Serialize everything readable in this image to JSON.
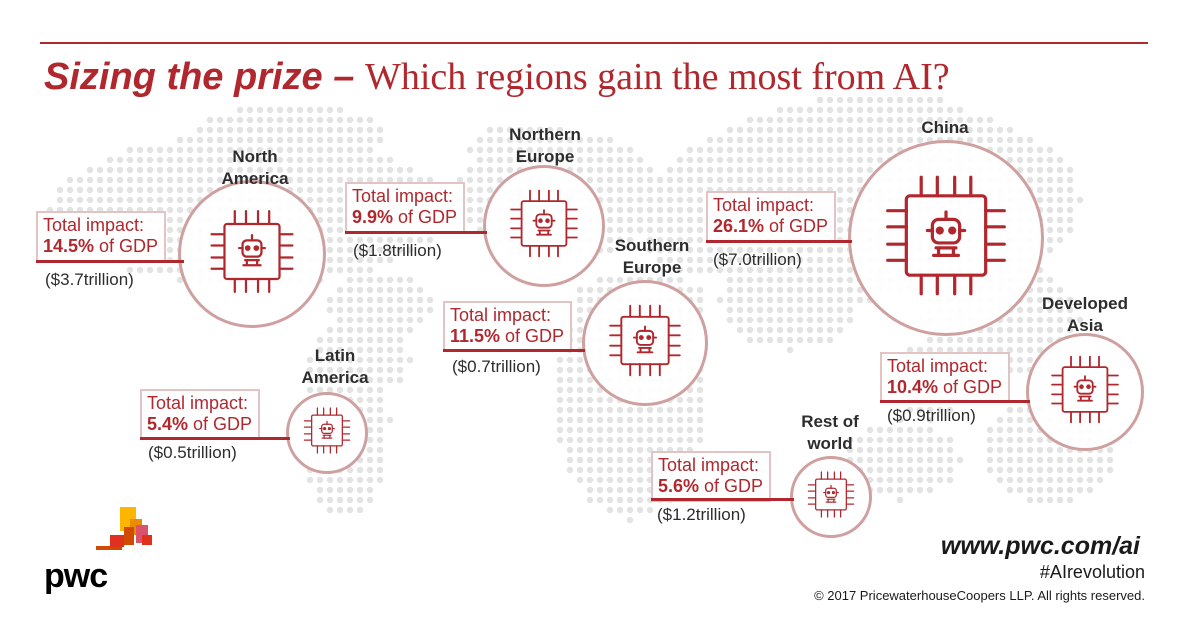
{
  "title": {
    "emphasis": "Sizing the prize –",
    "rest": "Which regions gain the most from AI?"
  },
  "common": {
    "total_impact_label": "Total impact:",
    "of_gdp": " of GDP"
  },
  "regions": [
    {
      "name_line1": "North",
      "name_line2": "America",
      "impact_pct": "14.5%",
      "amount": "($3.7trillion)"
    },
    {
      "name_line1": "Northern",
      "name_line2": "Europe",
      "impact_pct": "9.9%",
      "amount": "($1.8trillion)"
    },
    {
      "name_line1": "China",
      "name_line2": "",
      "impact_pct": "26.1%",
      "amount": "($7.0trillion)"
    },
    {
      "name_line1": "Southern",
      "name_line2": "Europe",
      "impact_pct": "11.5%",
      "amount": "($0.7trillion)"
    },
    {
      "name_line1": "Developed",
      "name_line2": "Asia",
      "impact_pct": "10.4%",
      "amount": "($0.9trillion)"
    },
    {
      "name_line1": "Latin",
      "name_line2": "America",
      "impact_pct": "5.4%",
      "amount": "($0.5trillion)"
    },
    {
      "name_line1": "Rest of",
      "name_line2": "world",
      "impact_pct": "5.6%",
      "amount": "($1.2trillion)"
    }
  ],
  "footer": {
    "url": "www.pwc.com/ai",
    "hashtag": "#AIrevolution",
    "copyright": "© 2017 PricewaterhouseCoopers LLP. All rights reserved.",
    "logo_text": "pwc"
  },
  "colors": {
    "accent": "#b0282e",
    "circle_border": "#cfa0a0",
    "map_dots": "#e3e3e3"
  }
}
